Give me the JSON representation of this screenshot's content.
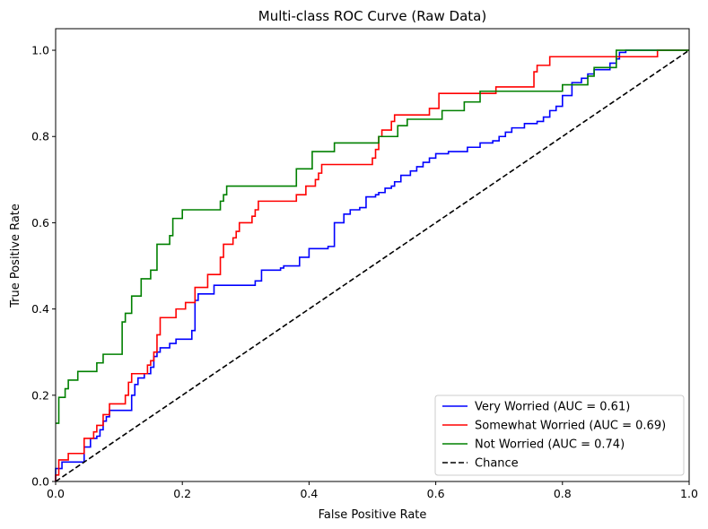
{
  "chart_data": {
    "type": "line",
    "title": "Multi-class ROC Curve (Raw Data)",
    "xlabel": "False Positive Rate",
    "ylabel": "True Positive Rate",
    "xlim": [
      0.0,
      1.0
    ],
    "ylim": [
      0.0,
      1.05
    ],
    "xticks": [
      "0.0",
      "0.2",
      "0.4",
      "0.6",
      "0.8",
      "1.0"
    ],
    "yticks": [
      "0.0",
      "0.2",
      "0.4",
      "0.6",
      "0.8",
      "1.0"
    ],
    "grid": false,
    "legend_position": "lower-right",
    "series": [
      {
        "name": "Very Worried (AUC = 0.61)",
        "color": "#0000ff",
        "dash": false,
        "points": [
          [
            0,
            0
          ],
          [
            0,
            0.03
          ],
          [
            0.01,
            0.03
          ],
          [
            0.01,
            0.045
          ],
          [
            0.045,
            0.045
          ],
          [
            0.045,
            0.08
          ],
          [
            0.055,
            0.08
          ],
          [
            0.055,
            0.1
          ],
          [
            0.065,
            0.1
          ],
          [
            0.065,
            0.105
          ],
          [
            0.07,
            0.105
          ],
          [
            0.07,
            0.12
          ],
          [
            0.075,
            0.12
          ],
          [
            0.075,
            0.14
          ],
          [
            0.08,
            0.14
          ],
          [
            0.08,
            0.15
          ],
          [
            0.085,
            0.15
          ],
          [
            0.085,
            0.165
          ],
          [
            0.12,
            0.165
          ],
          [
            0.12,
            0.2
          ],
          [
            0.125,
            0.2
          ],
          [
            0.125,
            0.225
          ],
          [
            0.13,
            0.225
          ],
          [
            0.13,
            0.24
          ],
          [
            0.14,
            0.24
          ],
          [
            0.14,
            0.25
          ],
          [
            0.15,
            0.25
          ],
          [
            0.15,
            0.265
          ],
          [
            0.155,
            0.265
          ],
          [
            0.155,
            0.29
          ],
          [
            0.16,
            0.29
          ],
          [
            0.16,
            0.3
          ],
          [
            0.165,
            0.3
          ],
          [
            0.165,
            0.31
          ],
          [
            0.18,
            0.31
          ],
          [
            0.18,
            0.32
          ],
          [
            0.19,
            0.32
          ],
          [
            0.19,
            0.33
          ],
          [
            0.215,
            0.33
          ],
          [
            0.215,
            0.35
          ],
          [
            0.22,
            0.35
          ],
          [
            0.22,
            0.42
          ],
          [
            0.225,
            0.42
          ],
          [
            0.225,
            0.435
          ],
          [
            0.25,
            0.435
          ],
          [
            0.25,
            0.455
          ],
          [
            0.315,
            0.455
          ],
          [
            0.315,
            0.465
          ],
          [
            0.325,
            0.465
          ],
          [
            0.325,
            0.49
          ],
          [
            0.355,
            0.49
          ],
          [
            0.355,
            0.495
          ],
          [
            0.36,
            0.495
          ],
          [
            0.36,
            0.5
          ],
          [
            0.385,
            0.5
          ],
          [
            0.385,
            0.52
          ],
          [
            0.4,
            0.52
          ],
          [
            0.4,
            0.54
          ],
          [
            0.43,
            0.54
          ],
          [
            0.43,
            0.545
          ],
          [
            0.44,
            0.545
          ],
          [
            0.44,
            0.6
          ],
          [
            0.455,
            0.6
          ],
          [
            0.455,
            0.62
          ],
          [
            0.465,
            0.62
          ],
          [
            0.465,
            0.63
          ],
          [
            0.48,
            0.63
          ],
          [
            0.48,
            0.635
          ],
          [
            0.49,
            0.635
          ],
          [
            0.49,
            0.66
          ],
          [
            0.505,
            0.66
          ],
          [
            0.505,
            0.665
          ],
          [
            0.51,
            0.665
          ],
          [
            0.51,
            0.67
          ],
          [
            0.52,
            0.67
          ],
          [
            0.52,
            0.68
          ],
          [
            0.53,
            0.68
          ],
          [
            0.53,
            0.685
          ],
          [
            0.535,
            0.685
          ],
          [
            0.535,
            0.695
          ],
          [
            0.545,
            0.695
          ],
          [
            0.545,
            0.71
          ],
          [
            0.56,
            0.71
          ],
          [
            0.56,
            0.72
          ],
          [
            0.57,
            0.72
          ],
          [
            0.57,
            0.73
          ],
          [
            0.58,
            0.73
          ],
          [
            0.58,
            0.74
          ],
          [
            0.59,
            0.74
          ],
          [
            0.59,
            0.75
          ],
          [
            0.6,
            0.75
          ],
          [
            0.6,
            0.76
          ],
          [
            0.62,
            0.76
          ],
          [
            0.62,
            0.765
          ],
          [
            0.65,
            0.765
          ],
          [
            0.65,
            0.775
          ],
          [
            0.67,
            0.775
          ],
          [
            0.67,
            0.785
          ],
          [
            0.69,
            0.785
          ],
          [
            0.69,
            0.79
          ],
          [
            0.7,
            0.79
          ],
          [
            0.7,
            0.8
          ],
          [
            0.71,
            0.8
          ],
          [
            0.71,
            0.81
          ],
          [
            0.72,
            0.81
          ],
          [
            0.72,
            0.82
          ],
          [
            0.74,
            0.82
          ],
          [
            0.74,
            0.83
          ],
          [
            0.76,
            0.83
          ],
          [
            0.76,
            0.835
          ],
          [
            0.77,
            0.835
          ],
          [
            0.77,
            0.845
          ],
          [
            0.78,
            0.845
          ],
          [
            0.78,
            0.86
          ],
          [
            0.79,
            0.86
          ],
          [
            0.79,
            0.87
          ],
          [
            0.8,
            0.87
          ],
          [
            0.8,
            0.895
          ],
          [
            0.815,
            0.895
          ],
          [
            0.815,
            0.925
          ],
          [
            0.83,
            0.925
          ],
          [
            0.83,
            0.935
          ],
          [
            0.84,
            0.935
          ],
          [
            0.84,
            0.945
          ],
          [
            0.85,
            0.945
          ],
          [
            0.85,
            0.955
          ],
          [
            0.875,
            0.955
          ],
          [
            0.875,
            0.97
          ],
          [
            0.885,
            0.97
          ],
          [
            0.885,
            0.98
          ],
          [
            0.89,
            0.98
          ],
          [
            0.89,
            0.995
          ],
          [
            0.9,
            0.995
          ],
          [
            0.9,
            1.0
          ],
          [
            1.0,
            1.0
          ]
        ]
      },
      {
        "name": "Somewhat Worried (AUC = 0.69)",
        "color": "#ff0000",
        "dash": false,
        "points": [
          [
            0,
            0
          ],
          [
            0,
            0.015
          ],
          [
            0.005,
            0.015
          ],
          [
            0.005,
            0.05
          ],
          [
            0.02,
            0.05
          ],
          [
            0.02,
            0.065
          ],
          [
            0.045,
            0.065
          ],
          [
            0.045,
            0.1
          ],
          [
            0.06,
            0.1
          ],
          [
            0.06,
            0.115
          ],
          [
            0.065,
            0.115
          ],
          [
            0.065,
            0.13
          ],
          [
            0.075,
            0.13
          ],
          [
            0.075,
            0.155
          ],
          [
            0.085,
            0.155
          ],
          [
            0.085,
            0.18
          ],
          [
            0.11,
            0.18
          ],
          [
            0.11,
            0.2
          ],
          [
            0.115,
            0.2
          ],
          [
            0.115,
            0.23
          ],
          [
            0.12,
            0.23
          ],
          [
            0.12,
            0.25
          ],
          [
            0.145,
            0.25
          ],
          [
            0.145,
            0.27
          ],
          [
            0.15,
            0.27
          ],
          [
            0.15,
            0.28
          ],
          [
            0.155,
            0.28
          ],
          [
            0.155,
            0.3
          ],
          [
            0.16,
            0.3
          ],
          [
            0.16,
            0.34
          ],
          [
            0.165,
            0.34
          ],
          [
            0.165,
            0.38
          ],
          [
            0.19,
            0.38
          ],
          [
            0.19,
            0.4
          ],
          [
            0.205,
            0.4
          ],
          [
            0.205,
            0.415
          ],
          [
            0.22,
            0.415
          ],
          [
            0.22,
            0.45
          ],
          [
            0.24,
            0.45
          ],
          [
            0.24,
            0.48
          ],
          [
            0.26,
            0.48
          ],
          [
            0.26,
            0.52
          ],
          [
            0.265,
            0.52
          ],
          [
            0.265,
            0.55
          ],
          [
            0.28,
            0.55
          ],
          [
            0.28,
            0.565
          ],
          [
            0.285,
            0.565
          ],
          [
            0.285,
            0.58
          ],
          [
            0.29,
            0.58
          ],
          [
            0.29,
            0.6
          ],
          [
            0.31,
            0.6
          ],
          [
            0.31,
            0.615
          ],
          [
            0.315,
            0.615
          ],
          [
            0.315,
            0.63
          ],
          [
            0.32,
            0.63
          ],
          [
            0.32,
            0.65
          ],
          [
            0.38,
            0.65
          ],
          [
            0.38,
            0.665
          ],
          [
            0.395,
            0.665
          ],
          [
            0.395,
            0.685
          ],
          [
            0.41,
            0.685
          ],
          [
            0.41,
            0.7
          ],
          [
            0.415,
            0.7
          ],
          [
            0.415,
            0.715
          ],
          [
            0.42,
            0.715
          ],
          [
            0.42,
            0.735
          ],
          [
            0.5,
            0.735
          ],
          [
            0.5,
            0.75
          ],
          [
            0.505,
            0.75
          ],
          [
            0.505,
            0.77
          ],
          [
            0.51,
            0.77
          ],
          [
            0.51,
            0.8
          ],
          [
            0.515,
            0.8
          ],
          [
            0.515,
            0.815
          ],
          [
            0.53,
            0.815
          ],
          [
            0.53,
            0.835
          ],
          [
            0.535,
            0.835
          ],
          [
            0.535,
            0.85
          ],
          [
            0.59,
            0.85
          ],
          [
            0.59,
            0.865
          ],
          [
            0.605,
            0.865
          ],
          [
            0.605,
            0.9
          ],
          [
            0.695,
            0.9
          ],
          [
            0.695,
            0.915
          ],
          [
            0.755,
            0.915
          ],
          [
            0.755,
            0.95
          ],
          [
            0.76,
            0.95
          ],
          [
            0.76,
            0.965
          ],
          [
            0.78,
            0.965
          ],
          [
            0.78,
            0.985
          ],
          [
            0.95,
            0.985
          ],
          [
            0.95,
            1.0
          ],
          [
            1.0,
            1.0
          ]
        ]
      },
      {
        "name": "Not Worried (AUC = 0.74)",
        "color": "#008000",
        "dash": false,
        "points": [
          [
            0,
            0.135
          ],
          [
            0.005,
            0.135
          ],
          [
            0.005,
            0.195
          ],
          [
            0.015,
            0.195
          ],
          [
            0.015,
            0.215
          ],
          [
            0.02,
            0.215
          ],
          [
            0.02,
            0.235
          ],
          [
            0.035,
            0.235
          ],
          [
            0.035,
            0.255
          ],
          [
            0.065,
            0.255
          ],
          [
            0.065,
            0.275
          ],
          [
            0.075,
            0.275
          ],
          [
            0.075,
            0.295
          ],
          [
            0.105,
            0.295
          ],
          [
            0.105,
            0.37
          ],
          [
            0.11,
            0.37
          ],
          [
            0.11,
            0.39
          ],
          [
            0.12,
            0.39
          ],
          [
            0.12,
            0.43
          ],
          [
            0.135,
            0.43
          ],
          [
            0.135,
            0.47
          ],
          [
            0.15,
            0.47
          ],
          [
            0.15,
            0.49
          ],
          [
            0.16,
            0.49
          ],
          [
            0.16,
            0.55
          ],
          [
            0.18,
            0.55
          ],
          [
            0.18,
            0.57
          ],
          [
            0.185,
            0.57
          ],
          [
            0.185,
            0.61
          ],
          [
            0.2,
            0.61
          ],
          [
            0.2,
            0.63
          ],
          [
            0.26,
            0.63
          ],
          [
            0.26,
            0.65
          ],
          [
            0.265,
            0.65
          ],
          [
            0.265,
            0.665
          ],
          [
            0.27,
            0.665
          ],
          [
            0.27,
            0.685
          ],
          [
            0.38,
            0.685
          ],
          [
            0.38,
            0.725
          ],
          [
            0.405,
            0.725
          ],
          [
            0.405,
            0.765
          ],
          [
            0.44,
            0.765
          ],
          [
            0.44,
            0.785
          ],
          [
            0.51,
            0.785
          ],
          [
            0.51,
            0.8
          ],
          [
            0.54,
            0.8
          ],
          [
            0.54,
            0.825
          ],
          [
            0.555,
            0.825
          ],
          [
            0.555,
            0.84
          ],
          [
            0.61,
            0.84
          ],
          [
            0.61,
            0.86
          ],
          [
            0.645,
            0.86
          ],
          [
            0.645,
            0.88
          ],
          [
            0.67,
            0.88
          ],
          [
            0.67,
            0.905
          ],
          [
            0.8,
            0.905
          ],
          [
            0.8,
            0.92
          ],
          [
            0.84,
            0.92
          ],
          [
            0.84,
            0.94
          ],
          [
            0.85,
            0.94
          ],
          [
            0.85,
            0.96
          ],
          [
            0.885,
            0.96
          ],
          [
            0.885,
            1.0
          ],
          [
            1.0,
            1.0
          ]
        ]
      },
      {
        "name": "Chance",
        "color": "#000000",
        "dash": true,
        "points": [
          [
            0,
            0
          ],
          [
            1,
            1
          ]
        ]
      }
    ]
  }
}
